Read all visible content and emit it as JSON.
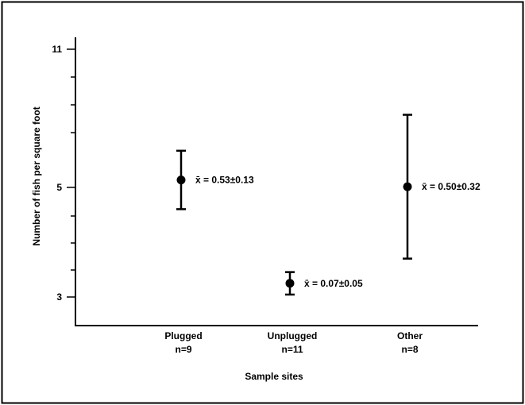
{
  "chart_data": {
    "type": "scatter",
    "title": "",
    "xlabel": "Sample sites",
    "ylabel": "Number of fish per square foot",
    "y_tick_labels": [
      "11",
      "5",
      "3"
    ],
    "categories": [
      {
        "name": "Plugged",
        "n_label": "n=9",
        "mean": 0.53,
        "err": 0.13,
        "mean_label": "x̄ = 0.53±0.13"
      },
      {
        "name": "Unplugged",
        "n_label": "n=11",
        "mean": 0.07,
        "err": 0.05,
        "mean_label": "x̄ = 0.07±0.05"
      },
      {
        "name": "Other",
        "n_label": "n=8",
        "mean": 0.5,
        "err": 0.32,
        "mean_label": "x̄ = 0.50±0.32"
      }
    ],
    "grid": false,
    "legend": "none"
  }
}
